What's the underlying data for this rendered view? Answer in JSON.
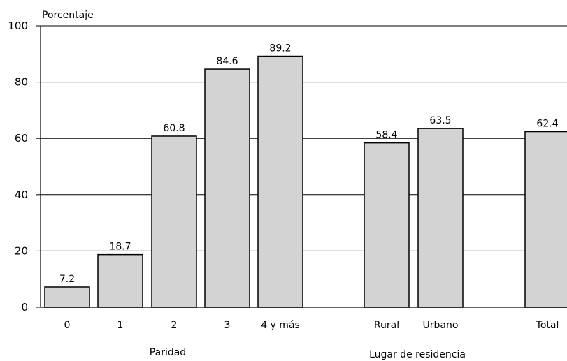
{
  "chart_data": {
    "type": "bar",
    "ylabel": "Porcentaje",
    "ylim": [
      0,
      100
    ],
    "yticks": [
      0,
      20,
      40,
      60,
      80,
      100
    ],
    "grid": true,
    "categories": [
      "0",
      "1",
      "2",
      "3",
      "4 y más",
      "Rural",
      "Urbano",
      "Total"
    ],
    "values": [
      7.2,
      18.7,
      60.8,
      84.6,
      89.2,
      58.4,
      63.5,
      62.4
    ],
    "data_labels": [
      "7.2",
      "18.7",
      "60.8",
      "84.6",
      "89.2",
      "58.4",
      "63.5",
      "62.4"
    ],
    "groups": [
      {
        "label": "Paridad",
        "categories": [
          "0",
          "1",
          "2",
          "3",
          "4 y más"
        ]
      },
      {
        "label": "Lugar de residencia",
        "categories": [
          "Rural",
          "Urbano"
        ]
      },
      {
        "label": "",
        "categories": [
          "Total"
        ]
      }
    ],
    "bar_color": "#d3d3d3",
    "bar_edge_color": "#000000"
  }
}
